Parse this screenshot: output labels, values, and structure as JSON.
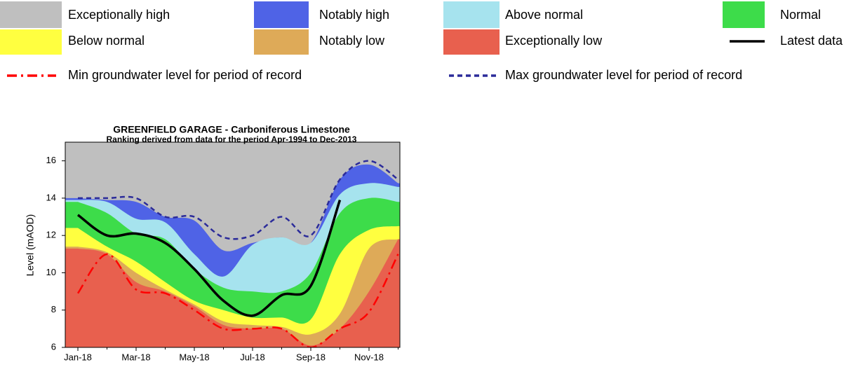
{
  "chart_data": {
    "type": "band-area",
    "title": "GREENFIELD GARAGE - Carboniferous Limestone",
    "subtitle": "Ranking derived from data for the period Apr-1994 to Dec-2013",
    "y_label": "Level (mAOD)",
    "categories": [
      "Jan-18",
      null,
      "Mar-18",
      null,
      "May-18",
      null,
      "Jul-18",
      null,
      "Sep-18",
      null,
      "Nov-18",
      null
    ],
    "ylim": [
      6,
      17
    ],
    "yticks": [
      6,
      8,
      10,
      12,
      14,
      16
    ],
    "series": [
      {
        "name": "Exceptionally high",
        "kind": "band",
        "color": "#bfbfbf"
      },
      {
        "name": "Notably high",
        "kind": "band",
        "color": "#4f63e6",
        "values": [
          14.0,
          13.9,
          13.8,
          13.0,
          12.8,
          11.2,
          11.6,
          11.9,
          11.6,
          15.0,
          15.8,
          14.8
        ]
      },
      {
        "name": "Above normal",
        "kind": "band",
        "color": "#a6e3ee",
        "values": [
          13.9,
          13.8,
          12.9,
          12.7,
          11.0,
          9.8,
          11.5,
          11.9,
          11.6,
          14.2,
          14.8,
          14.6
        ]
      },
      {
        "name": "Normal",
        "kind": "band",
        "color": "#3ddc4a",
        "values": [
          13.8,
          13.2,
          12.1,
          11.8,
          10.2,
          9.2,
          9.0,
          9.0,
          10.0,
          13.2,
          14.0,
          13.8
        ]
      },
      {
        "name": "Below normal",
        "kind": "band",
        "color": "#ffff40",
        "values": [
          12.4,
          11.4,
          10.6,
          9.5,
          8.5,
          8.0,
          7.6,
          7.6,
          7.5,
          11.0,
          12.3,
          12.5
        ]
      },
      {
        "name": "Notably low",
        "kind": "band",
        "color": "#deaa58",
        "values": [
          11.4,
          11.1,
          10.0,
          9.1,
          8.3,
          7.4,
          7.2,
          7.1,
          6.7,
          7.8,
          11.3,
          11.8
        ]
      },
      {
        "name": "Exceptionally low",
        "kind": "band",
        "color": "#e8604e",
        "values": [
          11.3,
          11.0,
          9.5,
          9.0,
          8.2,
          7.2,
          7.0,
          7.0,
          6.1,
          7.0,
          9.0,
          11.8
        ]
      },
      {
        "name": "Latest data",
        "kind": "line",
        "color": "#000000",
        "values": [
          13.1,
          12.0,
          12.1,
          11.6,
          10.2,
          8.5,
          7.7,
          8.8,
          9.3,
          13.9,
          null,
          null
        ]
      },
      {
        "name": "Min groundwater level for period of record",
        "kind": "line",
        "dash": "long-short",
        "color": "#ff0000",
        "values": [
          8.9,
          11.0,
          9.1,
          8.9,
          8.0,
          7.0,
          7.0,
          7.0,
          6.0,
          7.0,
          7.9,
          11.0
        ]
      },
      {
        "name": "Max groundwater level for period of record",
        "kind": "line",
        "dash": "short",
        "color": "#2b2b9a",
        "values": [
          14.0,
          14.0,
          14.0,
          13.0,
          13.0,
          11.9,
          12.0,
          13.0,
          12.0,
          15.0,
          16.0,
          15.0
        ]
      }
    ]
  }
}
